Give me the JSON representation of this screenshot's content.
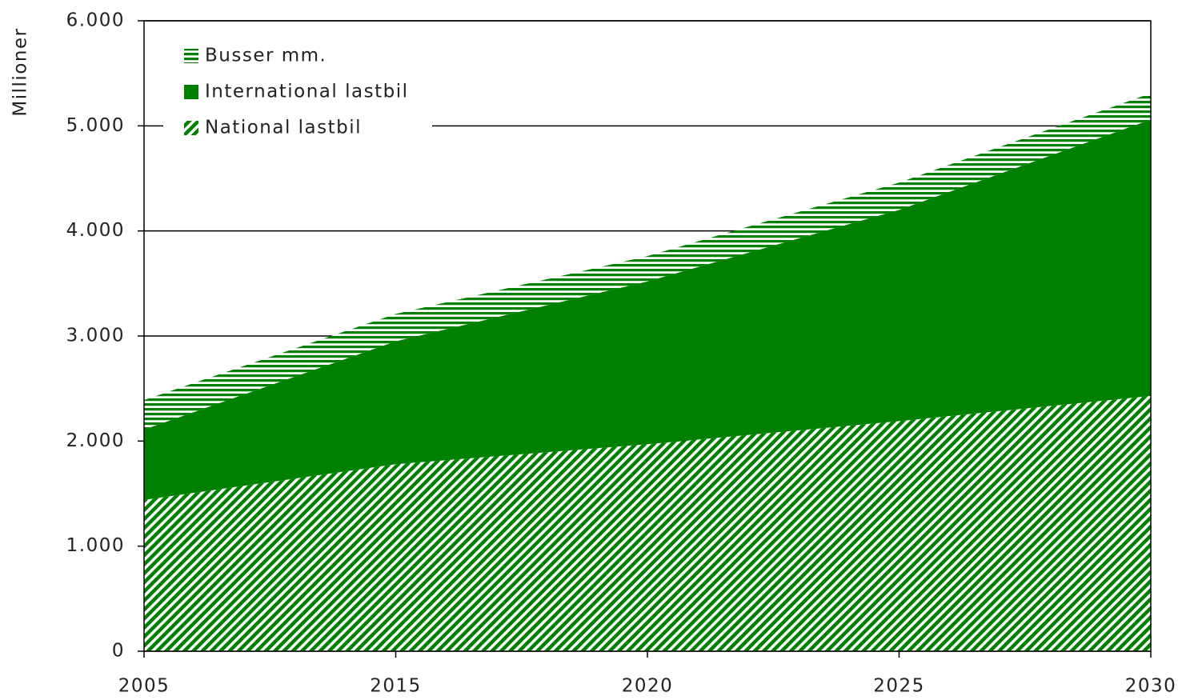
{
  "chart_data": {
    "type": "stacked_area",
    "y_label": "Millioner",
    "categories": [
      "2005",
      "2015",
      "2020",
      "2025",
      "2030"
    ],
    "series": [
      {
        "name": "National lastbil",
        "color": "#008000",
        "pattern": "diagonal",
        "values": [
          1440,
          1780,
          1970,
          2190,
          2430
        ]
      },
      {
        "name": "International lastbil",
        "color": "#008000",
        "pattern": "solid",
        "values": [
          670,
          1170,
          1550,
          2010,
          2630
        ]
      },
      {
        "name": "Busser mm.",
        "color": "#008000",
        "pattern": "horizontal",
        "values": [
          280,
          260,
          240,
          260,
          250
        ]
      }
    ],
    "ylim": [
      0,
      6000
    ],
    "yticks": [
      0,
      {
        "value": 1000,
        "label": "1.000"
      },
      {
        "value": 2000,
        "label": "2.000"
      },
      {
        "value": 3000,
        "label": "3.000"
      },
      {
        "value": 4000,
        "label": "4.000"
      },
      {
        "value": 5000,
        "label": "5.000"
      },
      {
        "value": 6000,
        "label": "6.000"
      }
    ],
    "grid": true,
    "legend": "top-left"
  }
}
